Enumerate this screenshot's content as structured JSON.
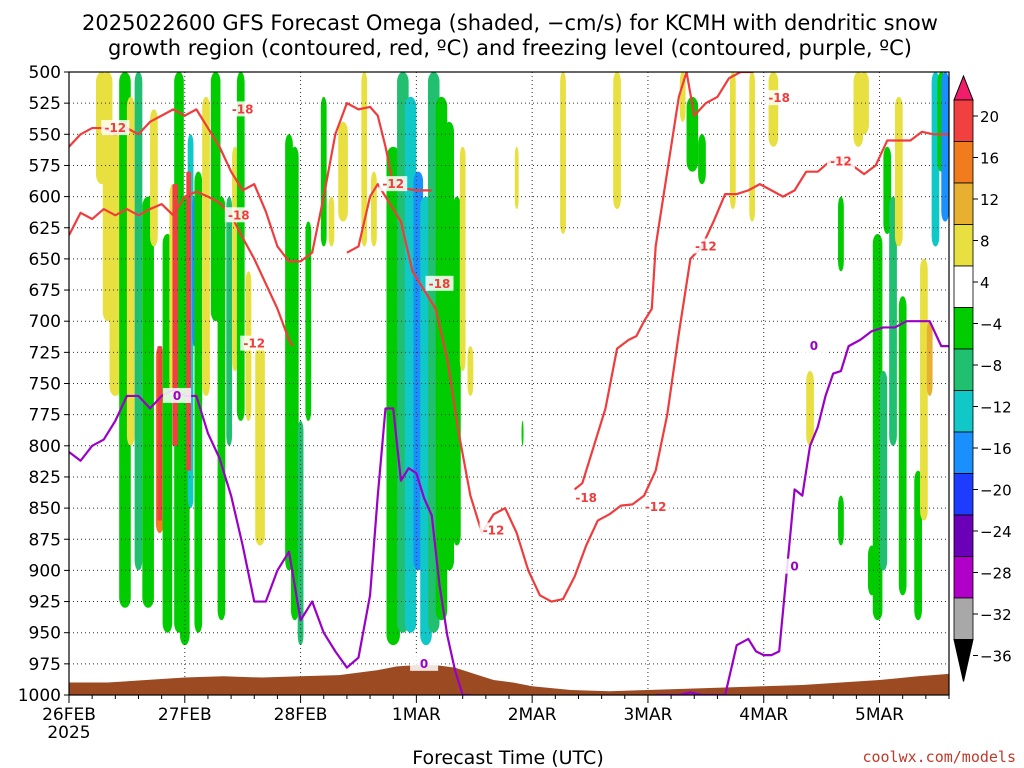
{
  "chart_data": {
    "type": "heatmap",
    "title_line1": "2025022600 GFS Forecast Omega (shaded, −cm/s) for KCMH with dendritic snow",
    "title_line2": "growth region (contoured, red, ºC) and freezing level (contoured, purple, ºC)",
    "xlabel": "Forecast Time (UTC)",
    "credit": "coolwx.com/models",
    "y_axis": {
      "label": "",
      "reversed": true,
      "ylim": [
        1000,
        500
      ],
      "ticks": [
        500,
        525,
        550,
        575,
        600,
        625,
        650,
        675,
        700,
        725,
        750,
        775,
        800,
        825,
        850,
        875,
        900,
        925,
        950,
        975,
        1000
      ]
    },
    "x_axis": {
      "xlim_hours": [
        0,
        228
      ],
      "tick_labels": [
        "26FEB",
        "27FEB",
        "28FEB",
        "1MAR",
        "2MAR",
        "3MAR",
        "4MAR",
        "5MAR"
      ],
      "tick_hours": [
        0,
        30,
        60,
        90,
        120,
        150,
        180,
        210
      ],
      "year_label": "2025"
    },
    "grid": true,
    "colorbar": {
      "labels": [
        "20",
        "16",
        "12",
        "8",
        "4",
        "−4",
        "−8",
        "−12",
        "−16",
        "−20",
        "−24",
        "−28",
        "−32",
        "−36"
      ],
      "colors": [
        "#f01d6a",
        "#f04040",
        "#f07c1e",
        "#e8b030",
        "#e8e040",
        "#ffffff",
        "#00cc00",
        "#20c070",
        "#10c8c8",
        "#1a90ff",
        "#1e3cff",
        "#6a00b8",
        "#b000c8",
        "#a8a8a8",
        "#000000"
      ]
    },
    "series": [
      {
        "name": "",
        "color": "#f03c3c",
        "label": "-12",
        "x": [
          0,
          3,
          6,
          9,
          12,
          15,
          18,
          21,
          24,
          27,
          30,
          33,
          36,
          39,
          42,
          45,
          48,
          51,
          54,
          57,
          58
        ],
        "y": [
          631,
          613,
          618,
          610,
          615,
          610,
          615,
          610,
          606,
          615,
          600,
          596,
          600,
          605,
          615,
          633,
          650,
          670,
          690,
          715,
          720
        ]
      },
      {
        "name": "",
        "color": "#f03c3c",
        "label": "-18",
        "x": [
          0,
          3,
          6,
          9,
          12,
          15,
          18,
          21,
          24,
          27,
          30,
          33,
          36,
          39,
          42,
          45,
          48,
          51,
          54,
          57,
          60,
          63,
          66,
          69,
          72,
          75,
          78,
          80,
          82,
          84,
          86,
          88,
          90,
          92,
          94
        ],
        "y": [
          560,
          550,
          545,
          545,
          550,
          545,
          550,
          540,
          535,
          530,
          535,
          530,
          545,
          560,
          580,
          595,
          590,
          612,
          640,
          652,
          652,
          645,
          600,
          550,
          525,
          530,
          528,
          535,
          560,
          590,
          594,
          594,
          595,
          595,
          595
        ]
      },
      {
        "name": "",
        "color": "#f03c3c",
        "label": "-12",
        "x": [
          72,
          75,
          78,
          80,
          83,
          86,
          89,
          92,
          95,
          98,
          101,
          104,
          107,
          110,
          113,
          116,
          119,
          122,
          125,
          128,
          131,
          134,
          137,
          140,
          143,
          146,
          149,
          152
        ],
        "y": [
          645,
          640,
          600,
          590,
          605,
          620,
          660,
          675,
          690,
          730,
          790,
          840,
          870,
          855,
          850,
          870,
          900,
          920,
          925,
          923,
          905,
          880,
          860,
          855,
          848,
          847,
          840,
          820
        ]
      },
      {
        "name": "",
        "color": "#f03c3c",
        "label": "-18",
        "x": [
          131,
          133,
          136,
          139,
          142,
          145,
          147,
          149,
          151,
          152,
          154,
          156,
          158,
          160,
          162,
          165,
          168,
          171,
          174,
          177,
          180,
          183,
          186,
          189,
          192,
          195,
          198,
          201,
          204,
          207,
          210,
          213,
          216,
          219,
          222,
          225,
          228
        ],
        "y": [
          835,
          830,
          800,
          770,
          722,
          715,
          712,
          700,
          690,
          640,
          600,
          560,
          520,
          500,
          535,
          525,
          520,
          505,
          500,
          500,
          497,
          497,
          497,
          497,
          497,
          497,
          497,
          497,
          497,
          497,
          497,
          497,
          497,
          497,
          497,
          497,
          497
        ]
      },
      {
        "name": "",
        "color": "#f03c3c",
        "label": "-12",
        "x": [
          152,
          155,
          158,
          161,
          164,
          167,
          170,
          173,
          176,
          179,
          182,
          185,
          188,
          191,
          194,
          197,
          200,
          203,
          206,
          209,
          212,
          215,
          218,
          221,
          224,
          227,
          228
        ],
        "y": [
          820,
          775,
          710,
          650,
          640,
          620,
          598,
          598,
          595,
          590,
          595,
          600,
          595,
          580,
          580,
          572,
          570,
          575,
          582,
          575,
          555,
          555,
          555,
          548,
          550,
          550,
          550
        ]
      },
      {
        "name": "",
        "color": "#9a00c8",
        "label": "0",
        "x": [
          0,
          3,
          6,
          9,
          12,
          15,
          18,
          21,
          24,
          27,
          30,
          33,
          36,
          39,
          42,
          45,
          48,
          51,
          54,
          57,
          60,
          63,
          66,
          69,
          72,
          75,
          78,
          80,
          82,
          84,
          86,
          88,
          90,
          92,
          94,
          96,
          98,
          100,
          102,
          104
        ],
        "y": [
          805,
          812,
          800,
          795,
          780,
          760,
          760,
          770,
          760,
          755,
          760,
          760,
          790,
          810,
          840,
          880,
          925,
          925,
          900,
          885,
          940,
          925,
          950,
          965,
          978,
          970,
          920,
          840,
          770,
          770,
          828,
          818,
          822,
          842,
          856,
          912,
          952,
          980,
          1000,
          1000
        ]
      },
      {
        "name": "",
        "color": "#9a00c8",
        "label": "0",
        "x": [
          152,
          155,
          158,
          161,
          164,
          167,
          170,
          173,
          176,
          178,
          180,
          182,
          184,
          186,
          188,
          190,
          192,
          194,
          196,
          198,
          200,
          202,
          205,
          208,
          211,
          214,
          217,
          220,
          223,
          226,
          228
        ],
        "y": [
          1000,
          1000,
          1000,
          998,
          1000,
          1000,
          1000,
          960,
          955,
          965,
          968,
          968,
          965,
          900,
          835,
          840,
          800,
          785,
          760,
          742,
          740,
          720,
          715,
          708,
          705,
          705,
          700,
          700,
          700,
          720,
          720
        ]
      }
    ]
  }
}
